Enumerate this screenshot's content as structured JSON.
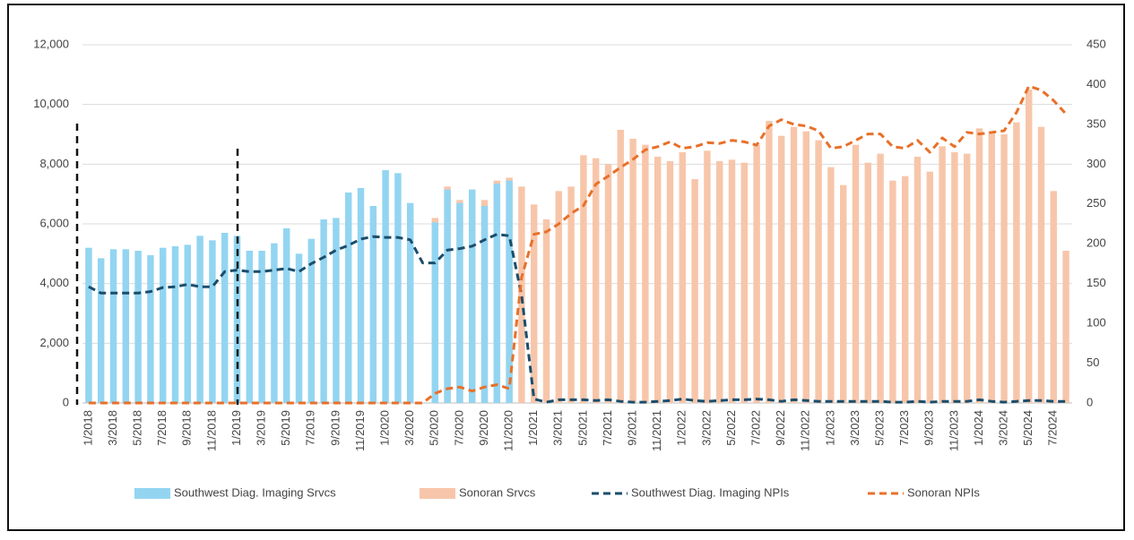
{
  "chart_data": {
    "type": "combo",
    "categories": [
      "1/2018",
      null,
      "3/2018",
      null,
      "5/2018",
      null,
      "7/2018",
      null,
      "9/2018",
      null,
      "11/2018",
      null,
      "1/2019",
      null,
      "3/2019",
      null,
      "5/2019",
      null,
      "7/2019",
      null,
      "9/2019",
      null,
      "11/2019",
      null,
      "1/2020",
      null,
      "3/2020",
      null,
      "5/2020",
      null,
      "7/2020",
      null,
      "9/2020",
      null,
      "11/2020",
      null,
      "1/2021",
      null,
      "3/2021",
      null,
      "5/2021",
      null,
      "7/2021",
      null,
      "9/2021",
      null,
      "11/2021",
      null,
      "1/2022",
      null,
      "3/2022",
      null,
      "5/2022",
      null,
      "7/2022",
      null,
      "9/2022",
      null,
      "11/2022",
      null,
      "1/2023",
      null,
      "3/2023",
      null,
      "5/2023",
      null,
      "7/2023",
      null,
      "9/2023",
      null,
      "11/2023",
      null,
      "1/2024",
      null,
      "3/2024",
      null,
      "5/2024",
      null,
      "7/2024",
      null
    ],
    "series": [
      {
        "name": "Sonoran Srvcs",
        "kind": "bar",
        "color": "#f7c6aa",
        "values": [
          null,
          null,
          null,
          null,
          null,
          null,
          null,
          null,
          null,
          null,
          null,
          null,
          null,
          null,
          null,
          null,
          null,
          null,
          null,
          null,
          null,
          null,
          null,
          null,
          null,
          null,
          null,
          null,
          6200,
          7250,
          6800,
          7150,
          6800,
          7450,
          7550,
          7250,
          6650,
          6150,
          7100,
          7250,
          8300,
          8200,
          8000,
          9150,
          8850,
          8650,
          8250,
          8100,
          8400,
          7500,
          8450,
          8100,
          8150,
          8050,
          8650,
          9450,
          8950,
          9250,
          9100,
          8800,
          7900,
          7300,
          8650,
          8050,
          8350,
          7450,
          7600,
          8250,
          7750,
          8600,
          8400,
          8350,
          9200,
          9100,
          9000,
          9400,
          10500,
          9250,
          7100,
          5100
        ]
      },
      {
        "name": "Southwest Diag. Imaging Srvcs",
        "kind": "bar",
        "color": "#93d5f1",
        "values": [
          5200,
          4850,
          5150,
          5150,
          5100,
          4950,
          5200,
          5250,
          5300,
          5600,
          5450,
          5700,
          5600,
          5100,
          5100,
          5350,
          5850,
          5000,
          5500,
          6150,
          6200,
          7050,
          7200,
          6600,
          7800,
          7700,
          6700,
          null,
          6050,
          7150,
          6700,
          7150,
          6600,
          7350,
          7450,
          null,
          null,
          null,
          null,
          null,
          null,
          null,
          null,
          null,
          null,
          null,
          null,
          null,
          null,
          null,
          null,
          null,
          null,
          null,
          null,
          null,
          null,
          null,
          null,
          null,
          null,
          null,
          null,
          null,
          null,
          null,
          null,
          null,
          null,
          null,
          null,
          null,
          null,
          null,
          null,
          null,
          null,
          null,
          null,
          null
        ]
      },
      {
        "name": "Southwest Diag. Imaging NPIs",
        "kind": "line",
        "axis": "y2",
        "color": "#1b4d6b",
        "values": [
          146,
          138,
          138,
          138,
          138,
          140,
          145,
          146,
          149,
          146,
          146,
          165,
          167,
          165,
          165,
          167,
          169,
          165,
          175,
          183,
          192,
          198,
          206,
          209,
          208,
          208,
          205,
          176,
          176,
          192,
          194,
          197,
          205,
          212,
          210,
          135,
          5,
          1,
          4,
          4,
          4,
          3,
          4,
          2,
          1,
          1,
          2,
          3,
          5,
          3,
          2,
          3,
          4,
          4,
          5,
          4,
          2,
          4,
          3,
          2,
          2,
          2,
          2,
          2,
          2,
          1,
          1,
          2,
          1,
          2,
          2,
          2,
          4,
          2,
          1,
          2,
          3,
          3,
          2,
          2
        ]
      },
      {
        "name": "Sonoran NPIs",
        "kind": "line",
        "axis": "y2",
        "color": "#e8702a",
        "values": [
          0,
          0,
          0,
          0,
          0,
          0,
          0,
          0,
          0,
          0,
          0,
          0,
          0,
          0,
          0,
          0,
          0,
          0,
          0,
          0,
          0,
          0,
          0,
          0,
          0,
          0,
          0,
          0,
          12,
          18,
          20,
          15,
          20,
          23,
          18,
          158,
          212,
          215,
          225,
          238,
          248,
          275,
          285,
          296,
          306,
          318,
          322,
          328,
          320,
          322,
          327,
          326,
          330,
          328,
          324,
          348,
          356,
          350,
          348,
          342,
          320,
          322,
          330,
          338,
          338,
          322,
          320,
          330,
          315,
          333,
          322,
          340,
          338,
          340,
          342,
          365,
          398,
          393,
          380,
          363
        ]
      }
    ],
    "ylim": [
      0,
      12000
    ],
    "yticks": [
      0,
      {
        "value": 2000,
        "label": "2,000"
      },
      {
        "value": 4000,
        "label": "4,000"
      },
      {
        "value": 6000,
        "label": "6,000"
      },
      {
        "value": 8000,
        "label": "8,000"
      },
      {
        "value": 10000,
        "label": "10,000"
      },
      {
        "value": 12000,
        "label": "12,000"
      }
    ],
    "y2lim": [
      0,
      450
    ],
    "y2ticks": [
      0,
      50,
      100,
      150,
      200,
      250,
      300,
      350,
      400,
      450
    ],
    "grid": true,
    "legend": "bottom"
  }
}
